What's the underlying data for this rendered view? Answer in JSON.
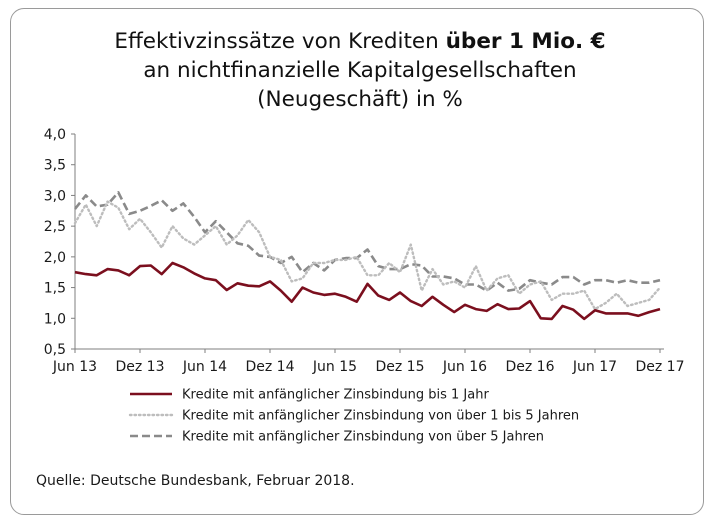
{
  "title": {
    "line1_pre": "Effektivzinssätze von Krediten ",
    "line1_bold": "über 1 Mio. €",
    "line2": "an nichtfinanzielle Kapitalgesellschaften",
    "line3": "(Neugeschäft) in %"
  },
  "source": "Quelle: Deutsche Bundesbank, Februar 2018.",
  "chart_data": {
    "type": "line",
    "title": "Effektivzinssätze von Krediten über 1 Mio. € an nichtfinanzielle Kapitalgesellschaften (Neugeschäft) in %",
    "xlabel": "",
    "ylabel": "",
    "ylim": [
      0.5,
      4.0
    ],
    "yticks": [
      "4,0",
      "3,5",
      "3,0",
      "2,5",
      "2,0",
      "1,5",
      "1,0",
      "0,5"
    ],
    "xticks": [
      "Jun 13",
      "Dez 13",
      "Jun 14",
      "Dez 14",
      "Jun 15",
      "Dez 15",
      "Jun 16",
      "Dez 16",
      "Jun 17",
      "Dez 17"
    ],
    "x_start": "2013-06",
    "x_end": "2017-12",
    "grid": false,
    "legend_position": "bottom",
    "series": [
      {
        "name": "Kredite mit anfänglicher Zinsbindung bis 1 Jahr",
        "color": "#7b0f1e",
        "style": "solid",
        "values": [
          1.75,
          1.72,
          1.7,
          1.8,
          1.78,
          1.7,
          1.85,
          1.86,
          1.72,
          1.9,
          1.83,
          1.73,
          1.65,
          1.62,
          1.46,
          1.57,
          1.53,
          1.52,
          1.6,
          1.45,
          1.27,
          1.5,
          1.42,
          1.38,
          1.4,
          1.35,
          1.27,
          1.56,
          1.37,
          1.3,
          1.42,
          1.28,
          1.2,
          1.35,
          1.22,
          1.1,
          1.22,
          1.15,
          1.12,
          1.23,
          1.15,
          1.16,
          1.28,
          1.0,
          0.99,
          1.2,
          1.14,
          0.99,
          1.13,
          1.08,
          1.08,
          1.08,
          1.04,
          1.1,
          1.15
        ]
      },
      {
        "name": "Kredite mit anfänglicher Zinsbindung von über 1 bis 5 Jahren",
        "color": "#bdbdbd",
        "style": "dotted",
        "values": [
          2.55,
          2.85,
          2.5,
          2.9,
          2.8,
          2.45,
          2.62,
          2.4,
          2.15,
          2.5,
          2.3,
          2.2,
          2.35,
          2.5,
          2.2,
          2.35,
          2.6,
          2.4,
          2.0,
          1.95,
          1.6,
          1.65,
          1.9,
          1.9,
          1.95,
          1.95,
          2.0,
          1.7,
          1.7,
          1.9,
          1.75,
          2.2,
          1.45,
          1.8,
          1.55,
          1.6,
          1.5,
          1.85,
          1.45,
          1.65,
          1.7,
          1.4,
          1.55,
          1.6,
          1.3,
          1.4,
          1.4,
          1.45,
          1.15,
          1.25,
          1.4,
          1.2,
          1.25,
          1.3,
          1.5
        ]
      },
      {
        "name": "Kredite mit anfänglicher Zinsbindung von über 5 Jahren",
        "color": "#8a8a8a",
        "style": "dashed",
        "values": [
          2.78,
          3.0,
          2.82,
          2.85,
          3.05,
          2.7,
          2.75,
          2.83,
          2.92,
          2.75,
          2.87,
          2.65,
          2.4,
          2.58,
          2.4,
          2.22,
          2.18,
          2.02,
          2.0,
          1.9,
          2.0,
          1.75,
          1.9,
          1.78,
          1.95,
          1.98,
          1.98,
          2.12,
          1.85,
          1.8,
          1.8,
          1.88,
          1.86,
          1.68,
          1.68,
          1.65,
          1.55,
          1.55,
          1.45,
          1.58,
          1.45,
          1.48,
          1.62,
          1.58,
          1.55,
          1.67,
          1.67,
          1.55,
          1.62,
          1.62,
          1.58,
          1.62,
          1.58,
          1.58,
          1.62
        ]
      }
    ]
  }
}
